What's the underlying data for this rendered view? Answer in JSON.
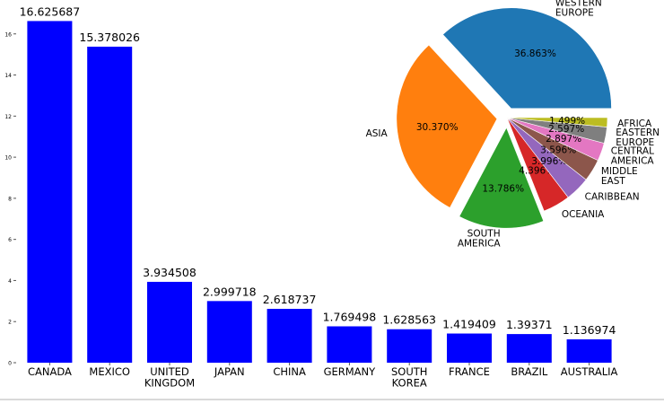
{
  "colors": {
    "bar": "#0000ff",
    "pie": [
      "#1f77b4",
      "#ff7f0e",
      "#2ca02c",
      "#d62728",
      "#9467bd",
      "#8c564b",
      "#e377c2",
      "#7f7f7f",
      "#bcbd22"
    ]
  },
  "chart_data": [
    {
      "type": "bar",
      "categories": [
        "CANADA",
        "MEXICO",
        "UNITED\nKINGDOM",
        "JAPAN",
        "CHINA",
        "GERMANY",
        "SOUTH\nKOREA",
        "FRANCE",
        "BRAZIL",
        "AUSTRALIA"
      ],
      "values": [
        16.625687,
        15.378026,
        3.934508,
        2.999718,
        2.618737,
        1.769498,
        1.628563,
        1.419409,
        1.39371,
        1.136974
      ],
      "value_labels": [
        "16.625687",
        "15.378026",
        "3.934508",
        "2.999718",
        "2.618737",
        "1.769498",
        "1.628563",
        "1.419409",
        "1.39371",
        "1.136974"
      ],
      "yticks": [
        0,
        2,
        4,
        6,
        8,
        10,
        12,
        14,
        16
      ],
      "ytick_labels": [
        "0",
        "2",
        "4",
        "6",
        "8",
        "10",
        "12",
        "14",
        "16"
      ],
      "ylim": [
        0,
        17.3
      ],
      "grid": false,
      "title": "",
      "xlabel": "",
      "ylabel": ""
    },
    {
      "type": "pie",
      "labels": [
        "WESTERN\nEUROPE",
        "ASIA",
        "SOUTH\nAMERICA",
        "OCEANIA",
        "CARIBBEAN",
        "MIDDLE\nEAST",
        "CENTRAL\nAMERICA",
        "EASTERN\nEUROPE",
        "AFRICA"
      ],
      "values": [
        36.863,
        30.37,
        13.786,
        4.396,
        3.996,
        3.596,
        2.897,
        2.597,
        1.499
      ],
      "pct_labels": [
        "36.863%",
        "30.370%",
        "13.786%",
        "4.396%",
        "3.996%",
        "3.596%",
        "2.897%",
        "2.597%",
        "1.499%"
      ],
      "explode": [
        0.1,
        0.1,
        0.1,
        0,
        0,
        0,
        0,
        0,
        0
      ],
      "start_angle": 0,
      "direction": "counterclockwise"
    }
  ]
}
